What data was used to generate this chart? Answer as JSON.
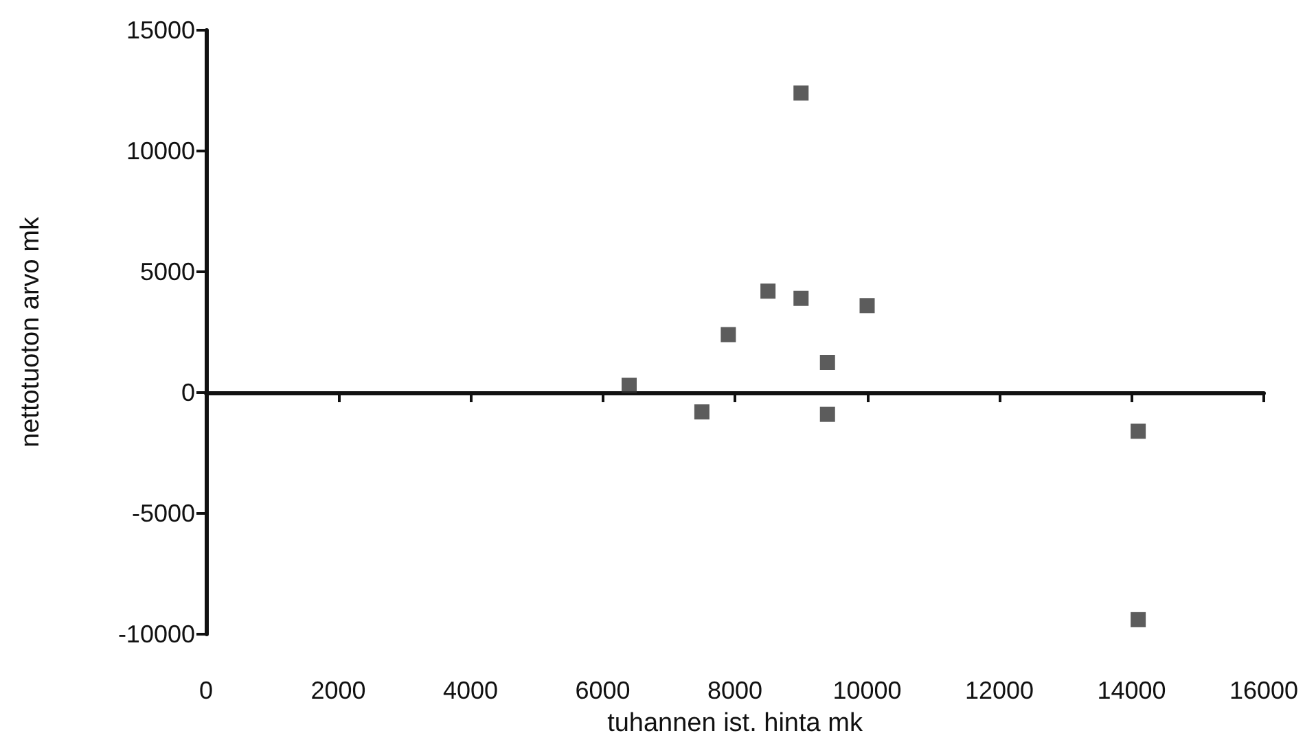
{
  "chart_data": {
    "type": "scatter",
    "xlabel": "tuhannen ist. hinta mk",
    "ylabel": "nettotuoton arvo mk",
    "x": [
      6400,
      7500,
      7900,
      8500,
      9000,
      9000,
      9400,
      9400,
      10000,
      14100,
      14100
    ],
    "values": [
      300,
      -800,
      2400,
      4200,
      3900,
      12400,
      1250,
      -900,
      3600,
      -1600,
      -9400
    ],
    "color": "#333333",
    "marker": "square",
    "xlim": [
      0,
      16000
    ],
    "xticks": [
      0,
      2000,
      4000,
      6000,
      8000,
      10000,
      12000,
      14000,
      16000
    ],
    "ylim": [
      -10000,
      15000
    ],
    "yticks": [
      -10000,
      -5000,
      0,
      5000,
      10000,
      15000
    ]
  }
}
